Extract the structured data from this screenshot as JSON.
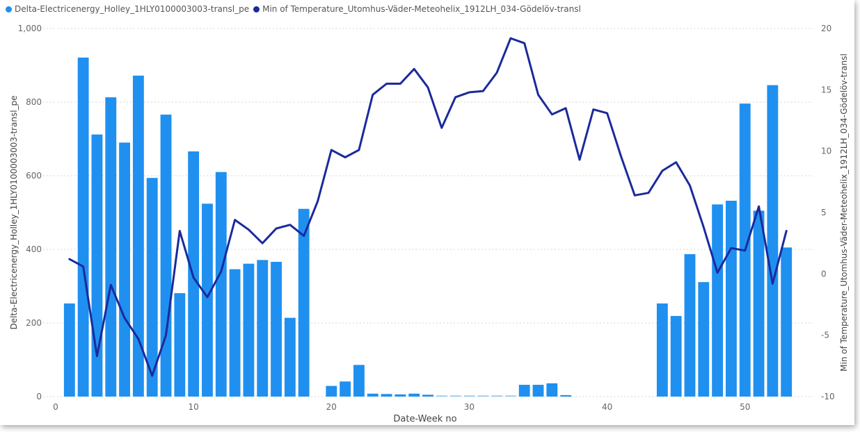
{
  "chart_data": {
    "type": "bar",
    "legend": {
      "placement": "top-left",
      "items": [
        {
          "label": "Delta-Electricenergy_Holley_1HLY0100003003-transl_pe",
          "color": "#1f90f0"
        },
        {
          "label": "Min of Temperature_Utomhus-Väder-Meteohelix_1912LH_034-Gödelöv-transl",
          "color": "#1a2a9c"
        }
      ]
    },
    "xlabel": "Date-Week no",
    "ylabel_left": "Delta-Electricenergy_Holley_1HLY0100003003-transl_pe",
    "ylabel_right": "Min of Temperature_Utomhus-Väder-Meteohelix_1912LH_034-Gödelöv-transl",
    "xlim": [
      0,
      54
    ],
    "ylim_left": [
      0,
      1000
    ],
    "ylim_right": [
      -10,
      20
    ],
    "x_ticks": [
      0,
      10,
      20,
      30,
      40,
      50
    ],
    "y_left_ticks": [
      0,
      200,
      400,
      600,
      800,
      1000
    ],
    "y_left_tick_labels": [
      "0",
      "200",
      "400",
      "600",
      "800",
      "1,000"
    ],
    "y_right_ticks": [
      -10,
      -5,
      0,
      5,
      10,
      15,
      20
    ],
    "grid": "horizontal dotted",
    "series": [
      {
        "name": "Delta-Electricenergy_Holley_1HLY0100003003-transl_pe",
        "type": "bar",
        "axis": "left",
        "color": "#1f90f0",
        "points": [
          [
            1,
            253
          ],
          [
            2,
            921
          ],
          [
            3,
            712
          ],
          [
            4,
            813
          ],
          [
            5,
            690
          ],
          [
            6,
            872
          ],
          [
            7,
            594
          ],
          [
            8,
            766
          ],
          [
            9,
            281
          ],
          [
            10,
            666
          ],
          [
            11,
            524
          ],
          [
            12,
            610
          ],
          [
            13,
            346
          ],
          [
            14,
            361
          ],
          [
            15,
            371
          ],
          [
            16,
            366
          ],
          [
            17,
            214
          ],
          [
            18,
            510
          ],
          [
            20,
            29
          ],
          [
            21,
            41
          ],
          [
            22,
            86
          ],
          [
            23,
            8
          ],
          [
            24,
            7
          ],
          [
            25,
            6
          ],
          [
            26,
            8
          ],
          [
            27,
            5
          ],
          [
            28,
            3
          ],
          [
            29,
            3
          ],
          [
            30,
            3
          ],
          [
            31,
            3
          ],
          [
            32,
            3
          ],
          [
            33,
            3
          ],
          [
            34,
            32
          ],
          [
            35,
            32
          ],
          [
            36,
            36
          ],
          [
            37,
            4
          ],
          [
            44,
            253
          ],
          [
            45,
            219
          ],
          [
            46,
            387
          ],
          [
            47,
            311
          ],
          [
            48,
            522
          ],
          [
            49,
            532
          ],
          [
            50,
            796
          ],
          [
            51,
            505
          ],
          [
            52,
            846
          ],
          [
            53,
            405
          ]
        ]
      },
      {
        "name": "Min of Temperature_Utomhus-Väder-Meteohelix_1912LH_034-Gödelöv-transl",
        "type": "line",
        "axis": "right",
        "color": "#1a2a9c",
        "points": [
          [
            1,
            1.2
          ],
          [
            2,
            0.6
          ],
          [
            3,
            -6.7
          ],
          [
            4,
            -0.9
          ],
          [
            5,
            -3.6
          ],
          [
            6,
            -5.3
          ],
          [
            7,
            -8.3
          ],
          [
            8,
            -5.0
          ],
          [
            9,
            3.5
          ],
          [
            10,
            -0.3
          ],
          [
            11,
            -1.9
          ],
          [
            12,
            0.2
          ],
          [
            13,
            4.4
          ],
          [
            14,
            3.6
          ],
          [
            15,
            2.5
          ],
          [
            16,
            3.7
          ],
          [
            17,
            4.0
          ],
          [
            18,
            3.1
          ],
          [
            19,
            5.9
          ],
          [
            20,
            10.1
          ],
          [
            21,
            9.5
          ],
          [
            22,
            10.1
          ],
          [
            23,
            14.6
          ],
          [
            24,
            15.5
          ],
          [
            25,
            15.5
          ],
          [
            26,
            16.7
          ],
          [
            27,
            15.2
          ],
          [
            28,
            11.9
          ],
          [
            29,
            14.4
          ],
          [
            30,
            14.8
          ],
          [
            31,
            14.9
          ],
          [
            32,
            16.4
          ],
          [
            33,
            19.2
          ],
          [
            34,
            18.8
          ],
          [
            35,
            14.6
          ],
          [
            36,
            13.0
          ],
          [
            37,
            13.5
          ],
          [
            38,
            9.3
          ],
          [
            39,
            13.4
          ],
          [
            40,
            13.1
          ],
          [
            41,
            9.6
          ],
          [
            42,
            6.4
          ],
          [
            43,
            6.6
          ],
          [
            44,
            8.4
          ],
          [
            45,
            9.1
          ],
          [
            46,
            7.2
          ],
          [
            47,
            3.8
          ],
          [
            48,
            0.1
          ],
          [
            49,
            2.1
          ],
          [
            50,
            1.9
          ],
          [
            51,
            5.5
          ],
          [
            52,
            -0.8
          ],
          [
            53,
            3.5
          ]
        ]
      }
    ]
  }
}
